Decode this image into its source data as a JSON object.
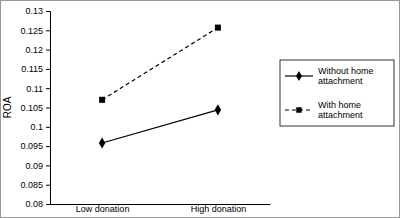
{
  "chart_data": {
    "type": "line",
    "y_label": "ROA",
    "categories": [
      "Low donation",
      "High donation"
    ],
    "series": [
      {
        "name": "Without home attachment",
        "color": "#000000",
        "marker": "diamond",
        "line_style": "solid",
        "values": [
          0.0958,
          0.1044
        ]
      },
      {
        "name": "With home attachment",
        "color": "#000000",
        "marker": "square",
        "line_style": "dashed",
        "values": [
          0.107,
          0.1257
        ]
      }
    ],
    "ylim": [
      0.08,
      0.13
    ],
    "yticks": [
      0.08,
      0.085,
      0.09,
      0.095,
      0.1,
      0.105,
      0.11,
      0.115,
      0.12,
      0.125,
      0.13
    ],
    "grid": false,
    "legend": "right"
  }
}
